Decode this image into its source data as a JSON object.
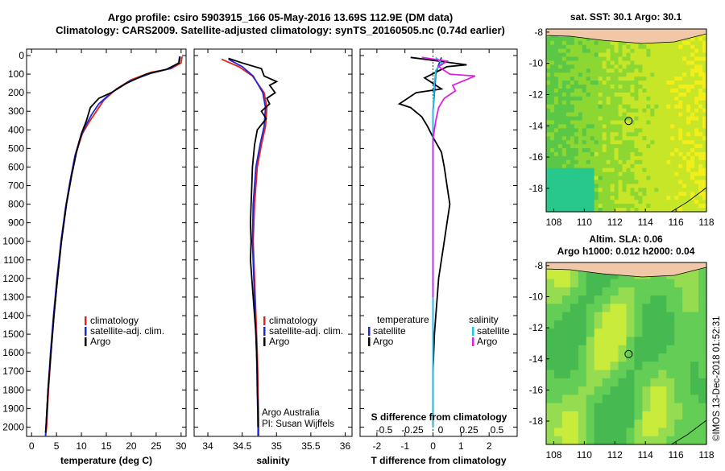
{
  "title": {
    "line1": "Argo profile: csiro 5903915_166 05-May-2016 13.69S 112.9E (DM data)",
    "line2": "Climatology: CARS2009. Satellite-adjusted climatology: synTS_20160505.nc (0.74d earlier)"
  },
  "colors": {
    "climatology": "#e8201a",
    "satellite": "#1f2ad6",
    "argo": "#000000",
    "sal_satellite": "#1ec8e0",
    "sal_argo": "#e020e0",
    "sst_yellow": "#f2ee1a",
    "land": "#f0c8a8"
  },
  "chart_data": [
    {
      "type": "line",
      "id": "temperature",
      "xlabel": "temperature (deg C)",
      "ylabel": "",
      "xlim": [
        -1,
        31
      ],
      "ylim": [
        0,
        2050
      ],
      "x_ticks": [
        0,
        5,
        10,
        15,
        20,
        25,
        30
      ],
      "y_ticks": [
        0,
        100,
        200,
        300,
        400,
        500,
        600,
        700,
        800,
        900,
        1000,
        1100,
        1200,
        1300,
        1400,
        1500,
        1600,
        1700,
        1800,
        1900,
        2000
      ],
      "legend": [
        "climatology",
        "satellite-adj. clim.",
        "Argo"
      ],
      "series": [
        {
          "name": "climatology",
          "color": "#e8201a",
          "points": [
            [
              30.2,
              5
            ],
            [
              30,
              40
            ],
            [
              28,
              70
            ],
            [
              24,
              90
            ],
            [
              20,
              130
            ],
            [
              17,
              180
            ],
            [
              14.5,
              240
            ],
            [
              13,
              300
            ],
            [
              11.5,
              360
            ],
            [
              10.2,
              420
            ],
            [
              9,
              520
            ],
            [
              8,
              650
            ],
            [
              7,
              800
            ],
            [
              6,
              1000
            ],
            [
              5.2,
              1200
            ],
            [
              4.5,
              1400
            ],
            [
              3.9,
              1600
            ],
            [
              3.4,
              1800
            ],
            [
              3,
              2000
            ],
            [
              2.8,
              2050
            ]
          ]
        },
        {
          "name": "satellite-adj. clim.",
          "color": "#1f2ad6",
          "points": [
            [
              29.7,
              5
            ],
            [
              29.5,
              40
            ],
            [
              27.8,
              70
            ],
            [
              24,
              95
            ],
            [
              19.5,
              140
            ],
            [
              16,
              200
            ],
            [
              13.5,
              260
            ],
            [
              12,
              320
            ],
            [
              10.8,
              380
            ],
            [
              9.8,
              440
            ],
            [
              8.7,
              540
            ],
            [
              7.7,
              680
            ],
            [
              6.8,
              820
            ],
            [
              5.9,
              1000
            ],
            [
              5.1,
              1200
            ],
            [
              4.4,
              1400
            ],
            [
              3.8,
              1600
            ],
            [
              3.3,
              1800
            ],
            [
              2.9,
              2000
            ],
            [
              2.8,
              2050
            ]
          ]
        },
        {
          "name": "Argo",
          "color": "#000000",
          "points": [
            [
              29.8,
              5
            ],
            [
              29.6,
              40
            ],
            [
              27,
              75
            ],
            [
              23,
              100
            ],
            [
              19,
              150
            ],
            [
              16,
              200
            ],
            [
              13.5,
              230
            ],
            [
              11.8,
              280
            ],
            [
              11,
              350
            ],
            [
              10,
              420
            ],
            [
              9,
              520
            ],
            [
              8,
              650
            ],
            [
              7,
              800
            ],
            [
              6,
              1000
            ],
            [
              5.2,
              1200
            ],
            [
              4.5,
              1400
            ],
            [
              3.9,
              1600
            ],
            [
              3.3,
              1800
            ],
            [
              2.9,
              2000
            ],
            [
              2.8,
              2030
            ]
          ]
        }
      ]
    },
    {
      "type": "line",
      "id": "salinity",
      "xlabel": "salinity",
      "ylabel": "",
      "xlim": [
        33.8,
        36.1
      ],
      "ylim": [
        0,
        2050
      ],
      "x_ticks": [
        34,
        34.5,
        35,
        35.5,
        36
      ],
      "legend": [
        "climatology",
        "satellite-adj. clim.",
        "Argo"
      ],
      "credit": [
        "Argo Australia",
        "PI: Susan Wijffels"
      ],
      "series": [
        {
          "name": "climatology",
          "color": "#e8201a",
          "points": [
            [
              34.2,
              20
            ],
            [
              34.45,
              60
            ],
            [
              34.65,
              110
            ],
            [
              34.82,
              200
            ],
            [
              34.86,
              280
            ],
            [
              34.84,
              380
            ],
            [
              34.78,
              480
            ],
            [
              34.72,
              600
            ],
            [
              34.68,
              800
            ],
            [
              34.66,
              1000
            ],
            [
              34.68,
              1200
            ],
            [
              34.7,
              1400
            ],
            [
              34.72,
              1600
            ],
            [
              34.73,
              1800
            ],
            [
              34.74,
              2000
            ],
            [
              34.74,
              2050
            ]
          ]
        },
        {
          "name": "satellite-adj. clim.",
          "color": "#1f2ad6",
          "points": [
            [
              34.3,
              20
            ],
            [
              34.5,
              60
            ],
            [
              34.66,
              110
            ],
            [
              34.8,
              200
            ],
            [
              34.84,
              280
            ],
            [
              34.82,
              380
            ],
            [
              34.76,
              480
            ],
            [
              34.7,
              600
            ],
            [
              34.66,
              800
            ],
            [
              34.65,
              1000
            ],
            [
              34.67,
              1200
            ],
            [
              34.69,
              1400
            ],
            [
              34.71,
              1600
            ],
            [
              34.72,
              1800
            ],
            [
              34.73,
              2000
            ],
            [
              34.73,
              2050
            ]
          ]
        },
        {
          "name": "Argo",
          "color": "#000000",
          "points": [
            [
              34.3,
              15
            ],
            [
              34.5,
              40
            ],
            [
              34.78,
              70
            ],
            [
              34.82,
              110
            ],
            [
              35,
              140
            ],
            [
              34.9,
              160
            ],
            [
              34.98,
              200
            ],
            [
              34.86,
              230
            ],
            [
              34.9,
              260
            ],
            [
              34.78,
              300
            ],
            [
              34.85,
              340
            ],
            [
              34.72,
              400
            ],
            [
              34.68,
              480
            ],
            [
              34.65,
              600
            ],
            [
              34.64,
              700
            ],
            [
              34.63,
              800
            ],
            [
              34.62,
              900
            ],
            [
              34.63,
              1000
            ],
            [
              34.62,
              1100
            ],
            [
              34.64,
              1200
            ],
            [
              34.66,
              1300
            ],
            [
              34.68,
              1400
            ],
            [
              34.7,
              1500
            ],
            [
              34.71,
              1600
            ],
            [
              34.72,
              1700
            ],
            [
              34.72,
              1800
            ],
            [
              34.73,
              1900
            ],
            [
              34.73,
              2000
            ]
          ]
        }
      ]
    },
    {
      "type": "line",
      "id": "difference",
      "xlabel": "T difference from climatology",
      "xlabel2": "S difference from climatology",
      "xlim": [
        -2.6,
        3.0
      ],
      "ylim": [
        0,
        2050
      ],
      "x_ticks": [
        -2,
        -1,
        0,
        1,
        2
      ],
      "x2_ticks": [
        -0.5,
        -0.25,
        0,
        0.25,
        0.5
      ],
      "x2_tick_labels": [
        "-0.5",
        "-0.25",
        "0",
        "0.25",
        "0.5"
      ],
      "legend_left_title": "temperature",
      "legend_right_title": "salinity",
      "legend_left": [
        "satellite",
        "Argo"
      ],
      "legend_right": [
        "satellite",
        "Argo"
      ],
      "series": [
        {
          "name": "T satellite",
          "color": "#1f2ad6",
          "points": [
            [
              0.3,
              10
            ],
            [
              0.2,
              50
            ],
            [
              0.1,
              100
            ],
            [
              0.05,
              200
            ],
            [
              0,
              300
            ],
            [
              0,
              500
            ],
            [
              0,
              800
            ],
            [
              0,
              1200
            ],
            [
              0,
              1600
            ],
            [
              0,
              2000
            ]
          ]
        },
        {
          "name": "T Argo",
          "color": "#000000",
          "points": [
            [
              -0.8,
              10
            ],
            [
              0.2,
              30
            ],
            [
              1.2,
              50
            ],
            [
              0.5,
              60
            ],
            [
              0.1,
              90
            ],
            [
              -0.3,
              120
            ],
            [
              0.3,
              180
            ],
            [
              -0.6,
              200
            ],
            [
              -1.2,
              260
            ],
            [
              -0.8,
              280
            ],
            [
              -0.4,
              330
            ],
            [
              -0.2,
              380
            ],
            [
              0,
              440
            ],
            [
              0.3,
              520
            ],
            [
              0.4,
              600
            ],
            [
              0.5,
              700
            ],
            [
              0.6,
              800
            ],
            [
              0.5,
              900
            ],
            [
              0.4,
              1000
            ],
            [
              0.3,
              1100
            ],
            [
              0.2,
              1200
            ],
            [
              0.15,
              1300
            ],
            [
              0.1,
              1400
            ],
            [
              0.05,
              1500
            ],
            [
              0,
              1700
            ],
            [
              0,
              2000
            ]
          ]
        },
        {
          "name": "S satellite",
          "color": "#1ec8e0",
          "points": [
            [
              0.1,
              10
            ],
            [
              0.3,
              40
            ],
            [
              0.1,
              80
            ],
            [
              0.05,
              150
            ],
            [
              0,
              300
            ],
            [
              0,
              600
            ],
            [
              0,
              1000
            ],
            [
              0,
              1500
            ],
            [
              0,
              2000
            ]
          ]
        },
        {
          "name": "S Argo",
          "color": "#e020e0",
          "points": [
            [
              -0.4,
              10
            ],
            [
              0.5,
              30
            ],
            [
              0.2,
              60
            ],
            [
              0.6,
              100
            ],
            [
              1.5,
              110
            ],
            [
              0.7,
              160
            ],
            [
              0.8,
              190
            ],
            [
              0.4,
              230
            ],
            [
              0.2,
              280
            ],
            [
              0.1,
              350
            ],
            [
              0,
              450
            ],
            [
              0,
              600
            ],
            [
              0,
              900
            ],
            [
              0,
              1300
            ]
          ]
        }
      ]
    },
    {
      "type": "heatmap",
      "id": "sst-map",
      "title": "sat. SST: 30.1 Argo: 30.1",
      "xlim": [
        107.5,
        118
      ],
      "ylim": [
        -19.5,
        -7.8
      ],
      "x_ticks": [
        108,
        110,
        112,
        114,
        116,
        118
      ],
      "y_ticks": [
        -8,
        -10,
        -12,
        -14,
        -16,
        -18
      ],
      "marker": {
        "lon": 112.9,
        "lat": -13.69
      }
    },
    {
      "type": "heatmap",
      "id": "sla-map",
      "title": "Altim. SLA: 0.06",
      "subtitle": "Argo h1000: 0.012 h2000: 0.04",
      "xlim": [
        107.5,
        118
      ],
      "ylim": [
        -19.5,
        -7.8
      ],
      "x_ticks": [
        108,
        110,
        112,
        114,
        116,
        118
      ],
      "y_ticks": [
        -8,
        -10,
        -12,
        -14,
        -16,
        -18
      ],
      "marker": {
        "lon": 112.9,
        "lat": -13.69
      }
    }
  ],
  "stamp": "©IMOS 13-Dec-2018 01:52:31"
}
